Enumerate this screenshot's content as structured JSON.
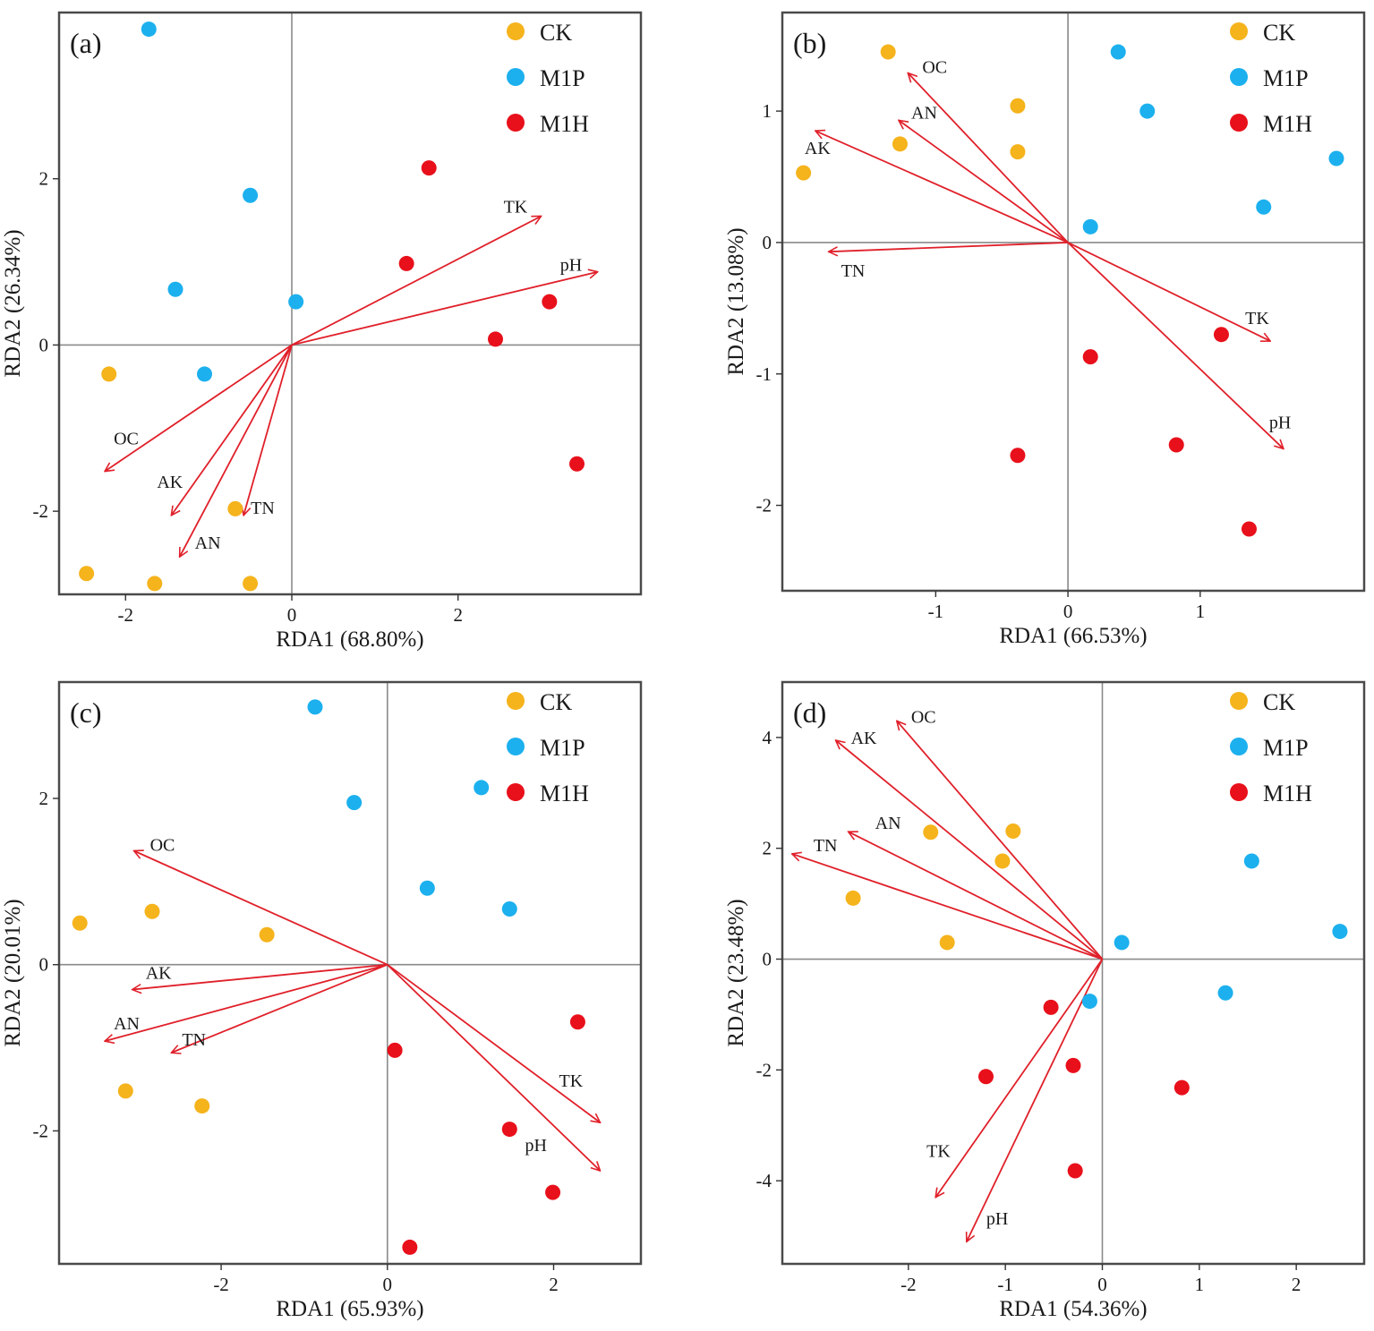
{
  "figure": {
    "legend": [
      "CK",
      "M1P",
      "M1H"
    ]
  },
  "colors": {
    "CK": "#F5B31C",
    "M1P": "#1CB0EE",
    "M1H": "#E8101B",
    "arrow": "#E0202A"
  },
  "chart_data": [
    {
      "type": "scatter",
      "panel": "(a)",
      "xlabel": "RDA1 (68.80%)",
      "ylabel": "RDA2 (26.34%)",
      "xlim": [
        -2.8,
        4.2
      ],
      "ylim": [
        -3.0,
        4.0
      ],
      "xticks": [
        -2,
        0,
        2
      ],
      "yticks": [
        -2,
        0,
        2
      ],
      "series": [
        {
          "name": "CK",
          "points": [
            [
              -2.2,
              -0.35
            ],
            [
              -0.68,
              -1.97
            ],
            [
              -2.47,
              -2.75
            ],
            [
              -1.65,
              -2.87
            ],
            [
              -0.5,
              -2.87
            ]
          ]
        },
        {
          "name": "M1P",
          "points": [
            [
              -1.72,
              3.8
            ],
            [
              -0.5,
              1.8
            ],
            [
              -1.4,
              0.67
            ],
            [
              0.05,
              0.52
            ],
            [
              -1.05,
              -0.35
            ]
          ]
        },
        {
          "name": "M1H",
          "points": [
            [
              1.65,
              2.13
            ],
            [
              1.38,
              0.98
            ],
            [
              3.1,
              0.52
            ],
            [
              2.45,
              0.07
            ],
            [
              3.43,
              -1.43
            ]
          ]
        }
      ],
      "vectors": [
        {
          "name": "TK",
          "x": 3.0,
          "y": 1.55
        },
        {
          "name": "pH",
          "x": 3.68,
          "y": 0.88
        },
        {
          "name": "OC",
          "x": -2.25,
          "y": -1.52
        },
        {
          "name": "AK",
          "x": -1.45,
          "y": -2.05
        },
        {
          "name": "AN",
          "x": -1.35,
          "y": -2.55
        },
        {
          "name": "TN",
          "x": -0.58,
          "y": -2.05
        }
      ]
    },
    {
      "type": "scatter",
      "panel": "(b)",
      "xlabel": "RDA1 (66.53%)",
      "ylabel": "RDA2 (13.08%)",
      "xlim": [
        -2.16,
        2.24
      ],
      "ylim": [
        -2.65,
        1.75
      ],
      "xticks": [
        -1,
        0,
        1
      ],
      "yticks": [
        -2,
        -1,
        0,
        1
      ],
      "series": [
        {
          "name": "CK",
          "points": [
            [
              -1.36,
              1.45
            ],
            [
              -0.38,
              1.04
            ],
            [
              -1.27,
              0.75
            ],
            [
              -0.38,
              0.69
            ],
            [
              -2.0,
              0.53
            ]
          ]
        },
        {
          "name": "M1P",
          "points": [
            [
              0.38,
              1.45
            ],
            [
              0.6,
              1.0
            ],
            [
              2.03,
              0.64
            ],
            [
              1.48,
              0.27
            ],
            [
              0.17,
              0.12
            ]
          ]
        },
        {
          "name": "M1H",
          "points": [
            [
              1.16,
              -0.7
            ],
            [
              0.17,
              -0.87
            ],
            [
              0.82,
              -1.54
            ],
            [
              -0.38,
              -1.62
            ],
            [
              1.37,
              -2.18
            ]
          ]
        }
      ],
      "vectors": [
        {
          "name": "OC",
          "x": -1.21,
          "y": 1.29
        },
        {
          "name": "AN",
          "x": -1.28,
          "y": 0.93
        },
        {
          "name": "AK",
          "x": -1.91,
          "y": 0.85
        },
        {
          "name": "TN",
          "x": -1.81,
          "y": -0.07
        },
        {
          "name": "TK",
          "x": 1.53,
          "y": -0.75
        },
        {
          "name": "pH",
          "x": 1.63,
          "y": -1.57
        }
      ]
    },
    {
      "type": "scatter",
      "panel": "(c)",
      "xlabel": "RDA1 (65.93%)",
      "ylabel": "RDA2 (20.01%)",
      "xlim": [
        -3.95,
        3.05
      ],
      "ylim": [
        -3.6,
        3.4
      ],
      "xticks": [
        -2,
        0,
        2
      ],
      "yticks": [
        -2,
        0,
        2
      ],
      "series": [
        {
          "name": "CK",
          "points": [
            [
              -3.7,
              0.5
            ],
            [
              -2.83,
              0.64
            ],
            [
              -1.45,
              0.36
            ],
            [
              -3.15,
              -1.52
            ],
            [
              -2.23,
              -1.7
            ]
          ]
        },
        {
          "name": "M1P",
          "points": [
            [
              -0.87,
              3.1
            ],
            [
              -0.4,
              1.95
            ],
            [
              1.13,
              2.13
            ],
            [
              0.48,
              0.92
            ],
            [
              1.47,
              0.67
            ]
          ]
        },
        {
          "name": "M1H",
          "points": [
            [
              2.29,
              -0.69
            ],
            [
              0.09,
              -1.03
            ],
            [
              1.47,
              -1.98
            ],
            [
              1.99,
              -2.74
            ],
            [
              0.27,
              -3.4
            ]
          ]
        }
      ],
      "vectors": [
        {
          "name": "OC",
          "x": -3.05,
          "y": 1.37
        },
        {
          "name": "AK",
          "x": -3.07,
          "y": -0.3
        },
        {
          "name": "AN",
          "x": -3.4,
          "y": -0.92
        },
        {
          "name": "TN",
          "x": -2.6,
          "y": -1.06
        },
        {
          "name": "TK",
          "x": 2.56,
          "y": -1.9
        },
        {
          "name": "pH",
          "x": 2.56,
          "y": -2.48
        }
      ]
    },
    {
      "type": "scatter",
      "panel": "(d)",
      "xlabel": "RDA1 (54.36%)",
      "ylabel": "RDA2 (23.48%)",
      "xlim": [
        -3.3,
        2.7
      ],
      "ylim": [
        -5.5,
        5.0
      ],
      "xticks": [
        -2,
        -1,
        0,
        1,
        2
      ],
      "yticks": [
        -4,
        -2,
        0,
        2,
        4
      ],
      "series": [
        {
          "name": "CK",
          "points": [
            [
              -1.77,
              2.29
            ],
            [
              -0.92,
              2.31
            ],
            [
              -1.03,
              1.77
            ],
            [
              -2.57,
              1.1
            ],
            [
              -1.6,
              0.3
            ]
          ]
        },
        {
          "name": "M1P",
          "points": [
            [
              1.54,
              1.77
            ],
            [
              2.45,
              0.5
            ],
            [
              0.2,
              0.3
            ],
            [
              1.27,
              -0.61
            ],
            [
              -0.13,
              -0.76
            ]
          ]
        },
        {
          "name": "M1H",
          "points": [
            [
              -0.53,
              -0.87
            ],
            [
              -0.3,
              -1.92
            ],
            [
              -1.2,
              -2.12
            ],
            [
              0.82,
              -2.32
            ],
            [
              -0.28,
              -3.82
            ]
          ]
        }
      ],
      "vectors": [
        {
          "name": "OC",
          "x": -2.12,
          "y": 4.3
        },
        {
          "name": "AK",
          "x": -2.75,
          "y": 3.95
        },
        {
          "name": "AN",
          "x": -2.62,
          "y": 2.3
        },
        {
          "name": "TN",
          "x": -3.2,
          "y": 1.9
        },
        {
          "name": "TK",
          "x": -1.72,
          "y": -4.3
        },
        {
          "name": "pH",
          "x": -1.4,
          "y": -5.1
        }
      ]
    }
  ]
}
